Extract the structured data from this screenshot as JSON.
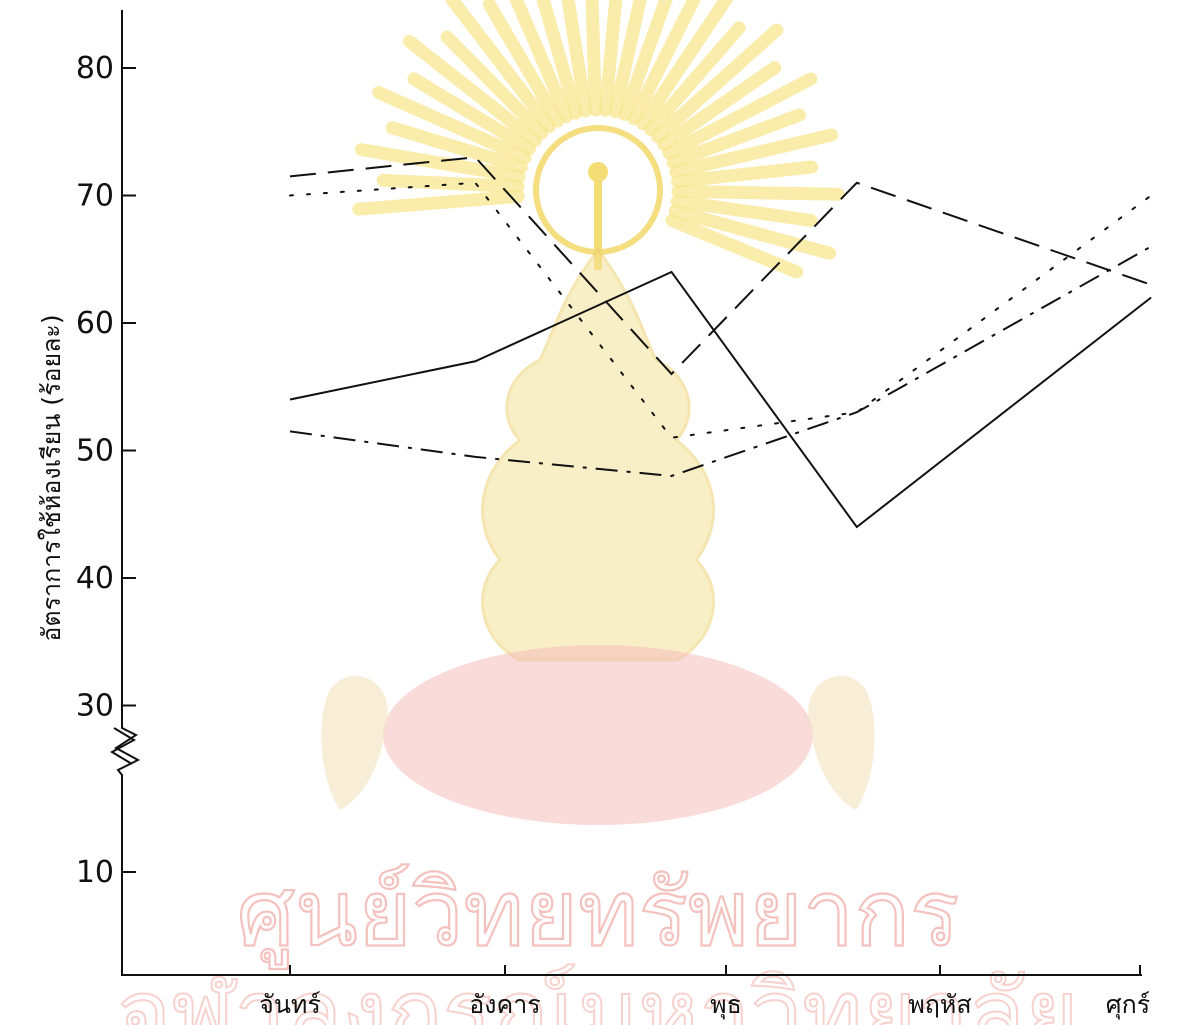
{
  "watermark": {
    "line1": "ศูนย์วิทยทรัพยากร",
    "line2": "จุฬาลงกรณ์มหาวิทยาลัย",
    "colors": {
      "rays": "#f7e27a",
      "emblem": "#f0cf4d",
      "cushion": "#f2b7b3",
      "text": "#f3b7b3"
    }
  },
  "chart_data": {
    "type": "line",
    "title": "",
    "ylabel": "อัตราการใช้ห้องเรียน (ร้อยละ)",
    "xlabel": "",
    "categories": [
      "จันทร์",
      "อังคาร",
      "พุธ",
      "พฤหัส",
      "ศุกร์"
    ],
    "y_ticks": [
      10,
      30,
      40,
      50,
      60,
      70,
      80
    ],
    "axis_break": "between 10 and 30",
    "ylim": [
      0,
      85
    ],
    "grid": false,
    "legend": "none",
    "series": [
      {
        "style": "solid",
        "x": [
          0,
          0.85,
          1.75,
          2.6,
          3.95
        ],
        "values": [
          54,
          57,
          64,
          44,
          62
        ]
      },
      {
        "style": "dashed",
        "x": [
          0,
          0.85,
          1.75,
          2.6,
          3.95
        ],
        "values": [
          71.5,
          73,
          56,
          71,
          63
        ]
      },
      {
        "style": "dotted",
        "x": [
          0,
          0.85,
          1.75,
          2.6,
          3.95
        ],
        "values": [
          70,
          71,
          51,
          53,
          70
        ]
      },
      {
        "style": "dash-dot",
        "x": [
          0,
          0.85,
          1.75,
          2.6,
          3.95
        ],
        "values": [
          51.5,
          49.5,
          48,
          53,
          66
        ]
      }
    ]
  }
}
